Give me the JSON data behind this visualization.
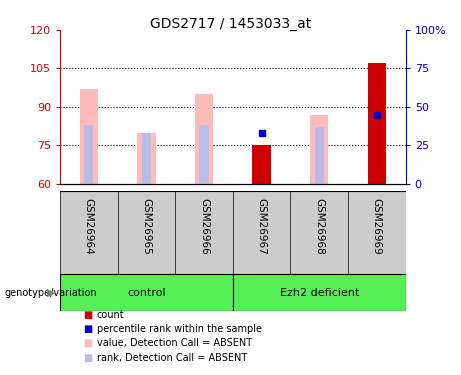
{
  "title": "GDS2717 / 1453033_at",
  "samples": [
    "GSM26964",
    "GSM26965",
    "GSM26966",
    "GSM26967",
    "GSM26968",
    "GSM26969"
  ],
  "ylim_left": [
    60,
    120
  ],
  "ylim_right": [
    0,
    100
  ],
  "yticks_left": [
    60,
    75,
    90,
    105,
    120
  ],
  "yticks_right": [
    0,
    25,
    50,
    75,
    100
  ],
  "ytick_labels_right": [
    "0",
    "25",
    "50",
    "75",
    "100%"
  ],
  "value_heights": [
    97,
    80,
    95,
    75,
    87,
    107
  ],
  "rank_heights": [
    83,
    80,
    83,
    null,
    82,
    87
  ],
  "count_heights": [
    null,
    null,
    null,
    75,
    null,
    107
  ],
  "percentile_values_left": [
    null,
    null,
    null,
    80,
    null,
    87
  ],
  "color_pink": "#ffbbbb",
  "color_lavender": "#b8bce8",
  "color_darkred": "#cc0000",
  "color_blue": "#0000cc",
  "color_left_axis": "#cc0000",
  "color_right_axis": "#0000cc",
  "color_sample_bg": "#cccccc",
  "color_group_bg": "#55ee55",
  "legend_items": [
    {
      "label": "count",
      "color": "#cc0000"
    },
    {
      "label": "percentile rank within the sample",
      "color": "#0000cc"
    },
    {
      "label": "value, Detection Call = ABSENT",
      "color": "#ffbbbb"
    },
    {
      "label": "rank, Detection Call = ABSENT",
      "color": "#b8bce8"
    }
  ]
}
